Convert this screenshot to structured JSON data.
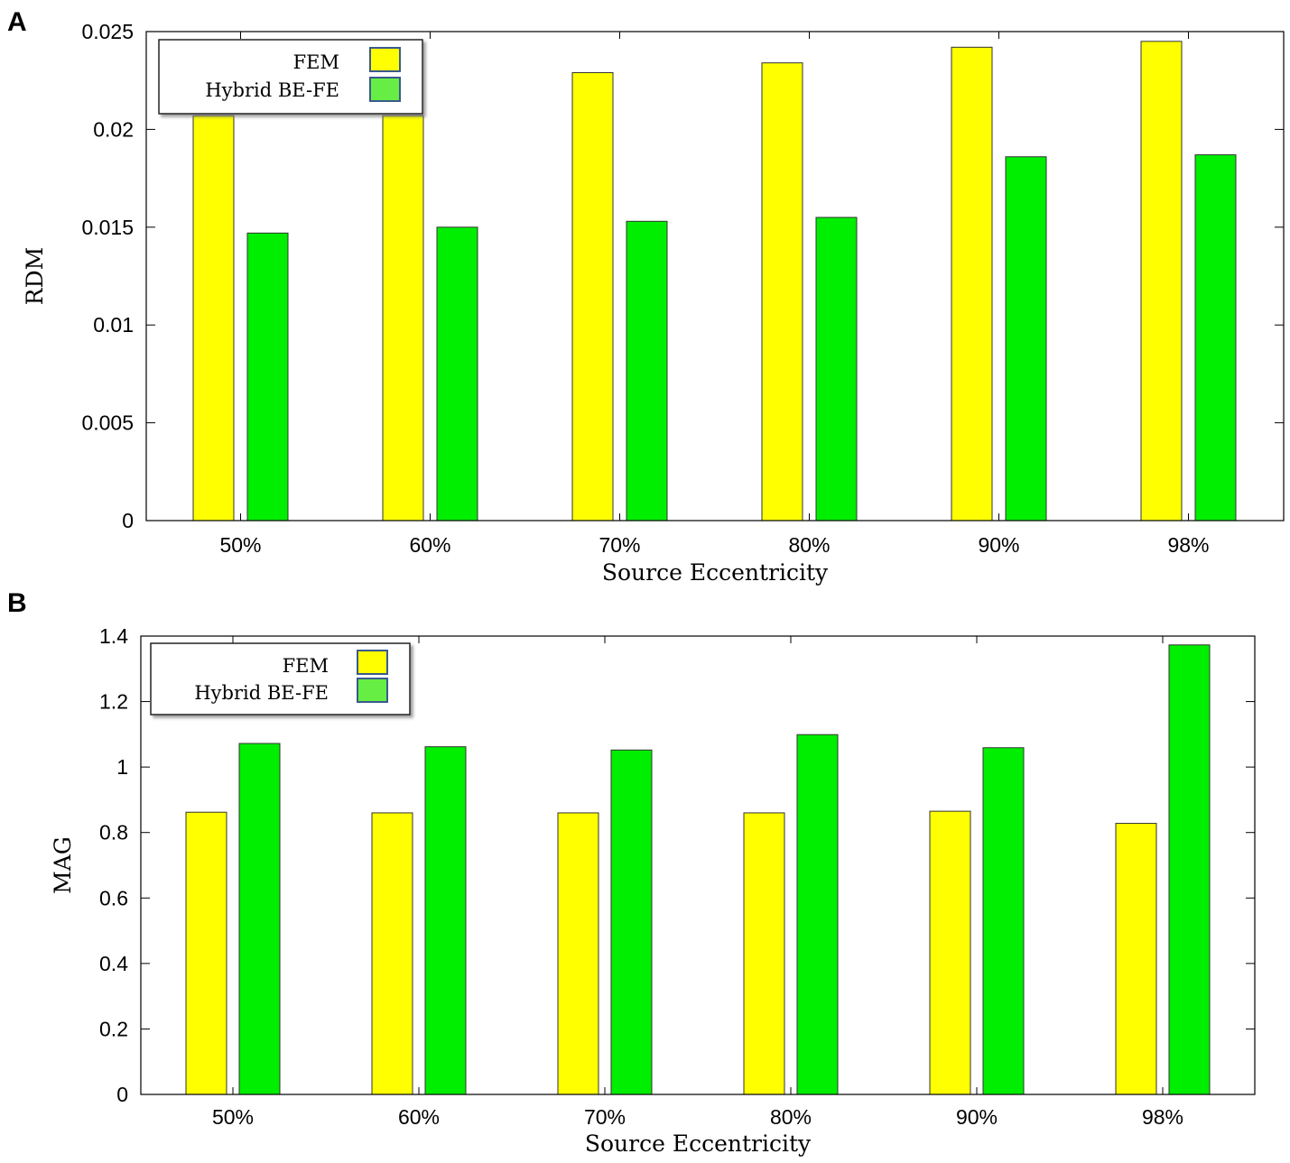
{
  "colors": {
    "fem": "#ffff00",
    "hybrid": "#00ee00",
    "legend_fem": "#ffff00",
    "legend_hybrid": "#66ee44",
    "legend_border": "#3a5a8c"
  },
  "chart_data": [
    {
      "panel": "A",
      "type": "bar",
      "categories": [
        "50%",
        "60%",
        "70%",
        "80%",
        "90%",
        "98%"
      ],
      "series": [
        {
          "name": "FEM",
          "values": [
            0.0207,
            0.0207,
            0.0229,
            0.0234,
            0.0242,
            0.0245
          ]
        },
        {
          "name": "Hybrid BE-FE",
          "values": [
            0.0147,
            0.015,
            0.0153,
            0.0155,
            0.0186,
            0.0187
          ]
        }
      ],
      "xlabel": "Source Eccentricity",
      "ylabel": "RDM",
      "ylim": [
        0,
        0.025
      ],
      "yticks": [
        "0",
        "0.005",
        "0.01",
        "0.015",
        "0.02",
        "0.025"
      ],
      "legend": [
        "FEM",
        "Hybrid BE-FE"
      ],
      "legend_position": "top-left"
    },
    {
      "panel": "B",
      "type": "bar",
      "categories": [
        "50%",
        "60%",
        "70%",
        "80%",
        "90%",
        "98%"
      ],
      "series": [
        {
          "name": "FEM",
          "values": [
            0.862,
            0.86,
            0.86,
            0.86,
            0.865,
            0.828
          ]
        },
        {
          "name": "Hybrid BE-FE",
          "values": [
            1.072,
            1.062,
            1.052,
            1.099,
            1.059,
            1.373
          ]
        }
      ],
      "xlabel": "Source Eccentricity",
      "ylabel": "MAG",
      "ylim": [
        0,
        1.4
      ],
      "yticks": [
        "0",
        "0.2",
        "0.4",
        "0.6",
        "0.8",
        "1",
        "1.2",
        "1.4"
      ],
      "legend": [
        "FEM",
        "Hybrid BE-FE"
      ],
      "legend_position": "top-left"
    }
  ]
}
